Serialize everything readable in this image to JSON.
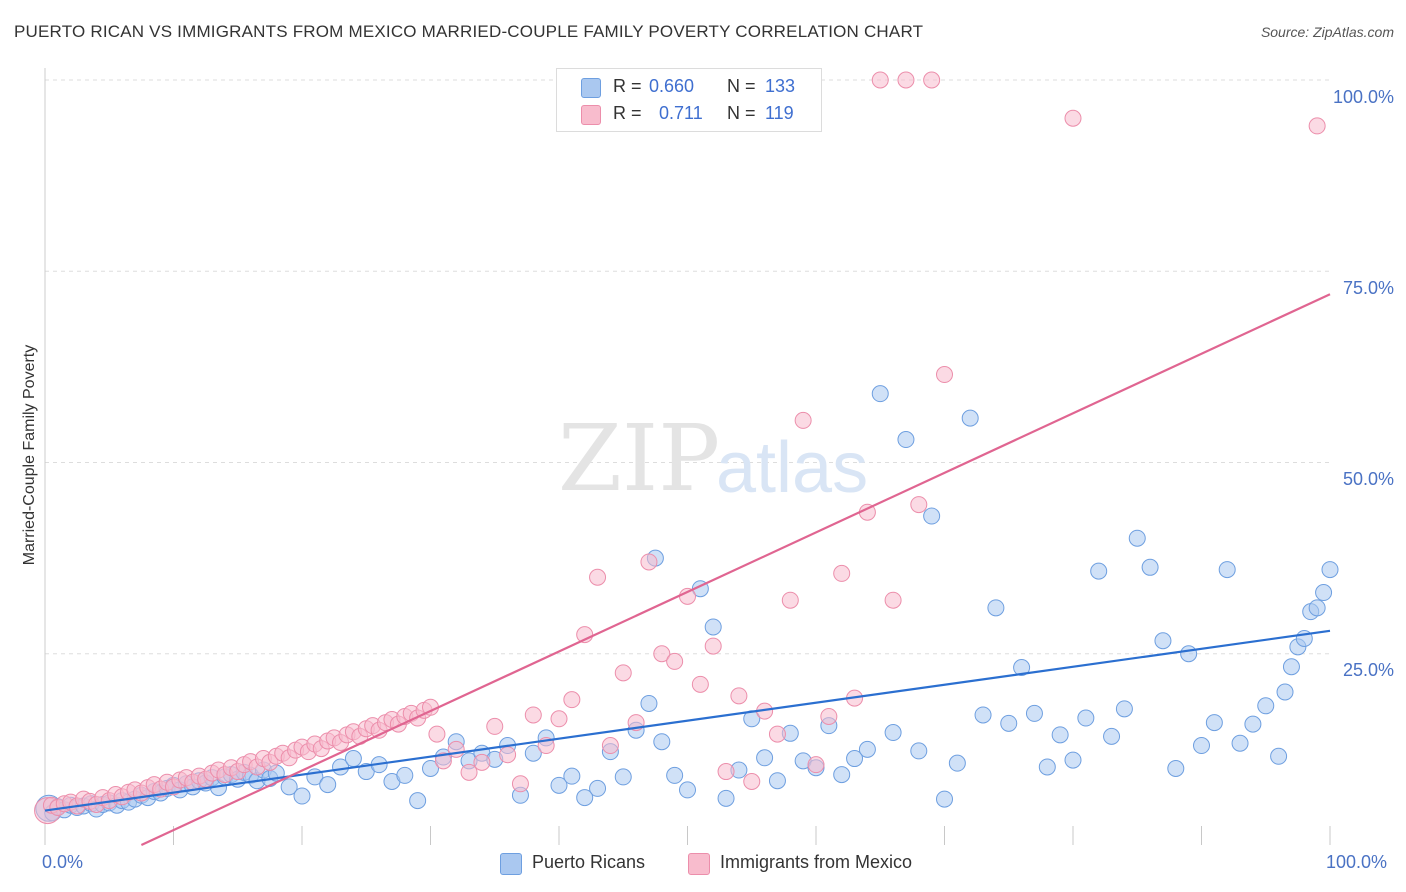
{
  "header": {
    "title": "PUERTO RICAN VS IMMIGRANTS FROM MEXICO MARRIED-COUPLE FAMILY POVERTY CORRELATION CHART",
    "source": "Source: ZipAtlas.com"
  },
  "watermark": {
    "zip": "ZIP",
    "atlas": "atlas"
  },
  "legend": {
    "series": [
      {
        "r_label": "R =",
        "r_value": "0.660",
        "n_label": "N =",
        "n_value": "133"
      },
      {
        "r_label": "R =",
        "r_value": "0.711",
        "n_label": "N =",
        "n_value": "119"
      }
    ]
  },
  "bottom_legend": [
    "Puerto Ricans",
    "Immigrants from Mexico"
  ],
  "colors": {
    "blue_fill": "#aac8f0",
    "blue_stroke": "#6e9fe0",
    "blue_line": "#2b6fd0",
    "pink_fill": "#f8bccd",
    "pink_stroke": "#ec8eab",
    "pink_line": "#e06591",
    "tick_text": "#4a72c4",
    "grid": "#dddddd"
  },
  "chart_data": {
    "type": "scatter",
    "title": "PUERTO RICAN VS IMMIGRANTS FROM MEXICO MARRIED-COUPLE FAMILY POVERTY CORRELATION CHART",
    "xlabel": "",
    "ylabel": "Married-Couple Family Poverty",
    "xlim": [
      0,
      100
    ],
    "ylim": [
      0,
      100
    ],
    "x_tick_labels": [
      "0.0%",
      "100.0%"
    ],
    "y_tick_labels": [
      "100.0%",
      "75.0%",
      "50.0%",
      "25.0%"
    ],
    "y_tick_values": [
      100,
      75,
      50,
      25
    ],
    "grid": true,
    "legend_position": "top-center",
    "series": [
      {
        "name": "Puerto Ricans",
        "r": 0.66,
        "n": 133,
        "trend": [
          [
            0,
            4.5
          ],
          [
            100,
            28
          ]
        ],
        "points": [
          [
            0.3,
            4.8
          ],
          [
            0.6,
            4.2
          ],
          [
            1,
            5
          ],
          [
            1.5,
            4.6
          ],
          [
            2,
            5.2
          ],
          [
            2.5,
            4.9
          ],
          [
            3,
            5.1
          ],
          [
            3.6,
            5.4
          ],
          [
            4,
            4.7
          ],
          [
            4.5,
            5.3
          ],
          [
            5,
            5.5
          ],
          [
            5.6,
            5.2
          ],
          [
            6,
            5.8
          ],
          [
            6.5,
            5.6
          ],
          [
            7,
            6
          ],
          [
            7.5,
            6.5
          ],
          [
            8,
            6.2
          ],
          [
            8.5,
            7
          ],
          [
            9,
            6.8
          ],
          [
            9.5,
            7.4
          ],
          [
            10,
            7.8
          ],
          [
            10.5,
            7.2
          ],
          [
            11,
            8
          ],
          [
            11.5,
            7.6
          ],
          [
            12,
            8.4
          ],
          [
            12.5,
            8.1
          ],
          [
            13,
            8.8
          ],
          [
            13.5,
            7.5
          ],
          [
            14,
            8.9
          ],
          [
            14.5,
            9.2
          ],
          [
            15,
            8.6
          ],
          [
            15.5,
            9.5
          ],
          [
            16,
            9.1
          ],
          [
            16.5,
            8.4
          ],
          [
            17,
            9.8
          ],
          [
            17.5,
            8.7
          ],
          [
            18,
            9.4
          ],
          [
            19,
            7.6
          ],
          [
            20,
            6.4
          ],
          [
            21,
            8.9
          ],
          [
            22,
            7.9
          ],
          [
            23,
            10.2
          ],
          [
            24,
            11.3
          ],
          [
            25,
            9.6
          ],
          [
            26,
            10.5
          ],
          [
            27,
            8.3
          ],
          [
            28,
            9.1
          ],
          [
            29,
            5.8
          ],
          [
            30,
            10
          ],
          [
            31,
            11.5
          ],
          [
            32,
            13.5
          ],
          [
            33,
            11
          ],
          [
            34,
            12
          ],
          [
            35,
            11.2
          ],
          [
            36,
            13
          ],
          [
            37,
            6.5
          ],
          [
            38,
            12
          ],
          [
            39,
            14
          ],
          [
            40,
            7.8
          ],
          [
            41,
            9
          ],
          [
            42,
            6.2
          ],
          [
            43,
            7.4
          ],
          [
            44,
            12.2
          ],
          [
            45,
            8.9
          ],
          [
            46,
            15
          ],
          [
            47,
            18.5
          ],
          [
            47.5,
            37.5
          ],
          [
            48,
            13.5
          ],
          [
            49,
            9.1
          ],
          [
            50,
            7.2
          ],
          [
            51,
            33.5
          ],
          [
            52,
            28.5
          ],
          [
            53,
            6.1
          ],
          [
            54,
            9.8
          ],
          [
            55,
            16.5
          ],
          [
            56,
            11.4
          ],
          [
            57,
            8.4
          ],
          [
            58,
            14.6
          ],
          [
            59,
            11
          ],
          [
            60,
            10.1
          ],
          [
            61,
            15.6
          ],
          [
            62,
            9.2
          ],
          [
            63,
            11.3
          ],
          [
            64,
            12.5
          ],
          [
            65,
            59
          ],
          [
            66,
            14.7
          ],
          [
            67,
            53
          ],
          [
            68,
            12.3
          ],
          [
            69,
            43
          ],
          [
            70,
            6
          ],
          [
            71,
            10.7
          ],
          [
            72,
            55.8
          ],
          [
            73,
            17
          ],
          [
            74,
            31
          ],
          [
            75,
            15.9
          ],
          [
            76,
            23.2
          ],
          [
            77,
            17.2
          ],
          [
            78,
            10.2
          ],
          [
            79,
            14.4
          ],
          [
            80,
            11.1
          ],
          [
            81,
            16.6
          ],
          [
            82,
            35.8
          ],
          [
            83,
            14.2
          ],
          [
            84,
            17.8
          ],
          [
            85,
            40.1
          ],
          [
            86,
            36.3
          ],
          [
            87,
            26.7
          ],
          [
            88,
            10
          ],
          [
            89,
            25
          ],
          [
            90,
            13
          ],
          [
            91,
            16
          ],
          [
            92,
            36
          ],
          [
            93,
            13.3
          ],
          [
            94,
            15.8
          ],
          [
            95,
            18.2
          ],
          [
            96,
            11.6
          ],
          [
            96.5,
            20
          ],
          [
            97,
            23.3
          ],
          [
            97.5,
            25.9
          ],
          [
            98,
            27
          ],
          [
            98.5,
            30.5
          ],
          [
            99,
            31
          ],
          [
            99.5,
            33
          ],
          [
            100,
            36
          ]
        ]
      },
      {
        "name": "Immigrants from Mexico",
        "r": 0.711,
        "n": 119,
        "trend": [
          [
            7.5,
            0
          ],
          [
            100,
            72
          ]
        ],
        "points": [
          [
            0.2,
            4.5
          ],
          [
            0.5,
            5.2
          ],
          [
            1,
            4.9
          ],
          [
            1.5,
            5.4
          ],
          [
            2,
            5.6
          ],
          [
            2.5,
            5.1
          ],
          [
            3,
            6
          ],
          [
            3.5,
            5.7
          ],
          [
            4,
            5.3
          ],
          [
            4.5,
            6.2
          ],
          [
            5,
            5.8
          ],
          [
            5.5,
            6.6
          ],
          [
            6,
            6.3
          ],
          [
            6.5,
            6.9
          ],
          [
            7,
            7.2
          ],
          [
            7.5,
            6.8
          ],
          [
            8,
            7.5
          ],
          [
            8.5,
            7.9
          ],
          [
            9,
            7.3
          ],
          [
            9.5,
            8.2
          ],
          [
            10,
            7.6
          ],
          [
            10.5,
            8.5
          ],
          [
            11,
            8.8
          ],
          [
            11.5,
            8.2
          ],
          [
            12,
            9
          ],
          [
            12.5,
            8.6
          ],
          [
            13,
            9.4
          ],
          [
            13.5,
            9.8
          ],
          [
            14,
            9.2
          ],
          [
            14.5,
            10.1
          ],
          [
            15,
            9.6
          ],
          [
            15.5,
            10.5
          ],
          [
            16,
            10.9
          ],
          [
            16.5,
            10.2
          ],
          [
            17,
            11.3
          ],
          [
            17.5,
            10.8
          ],
          [
            18,
            11.6
          ],
          [
            18.5,
            12
          ],
          [
            19,
            11.4
          ],
          [
            19.5,
            12.4
          ],
          [
            20,
            12.8
          ],
          [
            20.5,
            12.2
          ],
          [
            21,
            13.2
          ],
          [
            21.5,
            12.6
          ],
          [
            22,
            13.6
          ],
          [
            22.5,
            14
          ],
          [
            23,
            13.4
          ],
          [
            23.5,
            14.4
          ],
          [
            24,
            14.8
          ],
          [
            24.5,
            14.2
          ],
          [
            25,
            15.2
          ],
          [
            25.5,
            15.6
          ],
          [
            26,
            15
          ],
          [
            26.5,
            16
          ],
          [
            27,
            16.4
          ],
          [
            27.5,
            15.8
          ],
          [
            28,
            16.8
          ],
          [
            28.5,
            17.2
          ],
          [
            29,
            16.6
          ],
          [
            29.5,
            17.6
          ],
          [
            30,
            18
          ],
          [
            30.5,
            14.5
          ],
          [
            31,
            11
          ],
          [
            32,
            12.5
          ],
          [
            33,
            9.5
          ],
          [
            34,
            10.8
          ],
          [
            35,
            15.5
          ],
          [
            36,
            11.8
          ],
          [
            37,
            8
          ],
          [
            38,
            17
          ],
          [
            39,
            13
          ],
          [
            40,
            16.5
          ],
          [
            41,
            19
          ],
          [
            42,
            27.5
          ],
          [
            43,
            35
          ],
          [
            44,
            13
          ],
          [
            45,
            22.5
          ],
          [
            46,
            16
          ],
          [
            47,
            37
          ],
          [
            48,
            25
          ],
          [
            49,
            24
          ],
          [
            50,
            32.5
          ],
          [
            51,
            21
          ],
          [
            52,
            26
          ],
          [
            53,
            9.6
          ],
          [
            54,
            19.5
          ],
          [
            55,
            8.3
          ],
          [
            56,
            17.5
          ],
          [
            57,
            14.5
          ],
          [
            58,
            32
          ],
          [
            59,
            55.5
          ],
          [
            60,
            10.5
          ],
          [
            61,
            16.8
          ],
          [
            62,
            35.5
          ],
          [
            63,
            19.2
          ],
          [
            64,
            43.5
          ],
          [
            65,
            100
          ],
          [
            66,
            32
          ],
          [
            67,
            100
          ],
          [
            68,
            44.5
          ],
          [
            69,
            100
          ],
          [
            70,
            61.5
          ],
          [
            80,
            95
          ],
          [
            99,
            94
          ]
        ]
      }
    ]
  }
}
